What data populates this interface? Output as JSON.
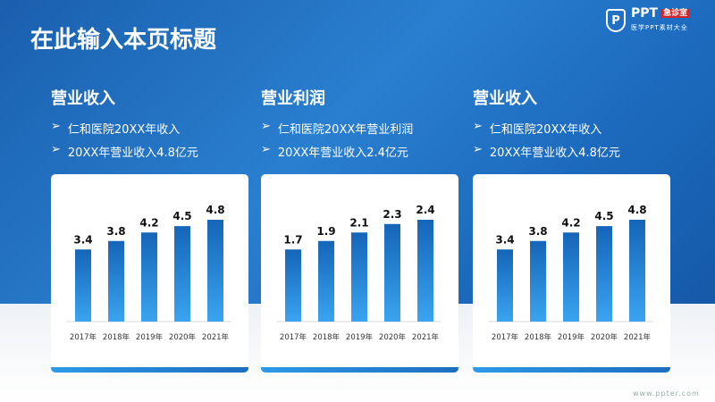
{
  "page": {
    "title": "在此输入本页标题",
    "watermark": "www.ppter.com"
  },
  "logo": {
    "name": "PPT",
    "tag": "急诊室",
    "subtitle": "医学PPT素材大全",
    "icon": "shield-p-icon"
  },
  "columns": [
    {
      "heading": "营业收入",
      "bullets": [
        "仁和医院20XX年收入",
        "20XX年营业收入4.8亿元"
      ]
    },
    {
      "heading": "营业利润",
      "bullets": [
        "仁和医院20XX年营业利润",
        "20XX年营业收入2.4亿元"
      ]
    },
    {
      "heading": "营业收入",
      "bullets": [
        "仁和医院20XX年收入",
        "20XX年营业收入4.8亿元"
      ]
    }
  ],
  "bullet_icon": "arrowhead-icon",
  "colors": {
    "bar_top": "#1565b8",
    "bar_bottom": "#3aa4f0",
    "background": "#1d6cc0"
  },
  "chart_data": [
    {
      "type": "bar",
      "categories": [
        "2017年",
        "2018年",
        "2019年",
        "2020年",
        "2021年"
      ],
      "values": [
        3.4,
        3.8,
        4.2,
        4.5,
        4.8
      ],
      "ylim": [
        0,
        4.8
      ],
      "grid": false
    },
    {
      "type": "bar",
      "categories": [
        "2017年",
        "2018年",
        "2019年",
        "2020年",
        "2021年"
      ],
      "values": [
        1.7,
        1.9,
        2.1,
        2.3,
        2.4
      ],
      "ylim": [
        0,
        2.4
      ],
      "grid": false
    },
    {
      "type": "bar",
      "categories": [
        "2017年",
        "2018年",
        "2019年",
        "2020年",
        "2021年"
      ],
      "values": [
        3.4,
        3.8,
        4.2,
        4.5,
        4.8
      ],
      "ylim": [
        0,
        4.8
      ],
      "grid": false
    }
  ]
}
